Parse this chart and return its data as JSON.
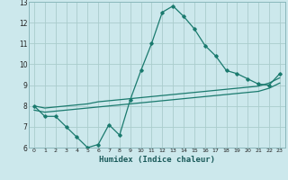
{
  "title": "",
  "xlabel": "Humidex (Indice chaleur)",
  "bg_color": "#cce8ec",
  "grid_color": "#aacccc",
  "line_color": "#1a7a6e",
  "xlim": [
    -0.5,
    23.5
  ],
  "ylim": [
    6,
    13
  ],
  "yticks": [
    6,
    7,
    8,
    9,
    10,
    11,
    12,
    13
  ],
  "xticks": [
    0,
    1,
    2,
    3,
    4,
    5,
    6,
    7,
    8,
    9,
    10,
    11,
    12,
    13,
    14,
    15,
    16,
    17,
    18,
    19,
    20,
    21,
    22,
    23
  ],
  "series": {
    "line1_x": [
      0,
      1,
      2,
      3,
      4,
      5,
      6,
      7,
      8,
      9,
      10,
      11,
      12,
      13,
      14,
      15,
      16,
      17,
      18,
      19,
      20,
      21,
      22,
      23
    ],
    "line1_y": [
      8.0,
      7.5,
      7.5,
      7.0,
      6.5,
      6.0,
      6.15,
      7.1,
      6.6,
      8.3,
      9.7,
      11.0,
      12.5,
      12.8,
      12.3,
      11.7,
      10.9,
      10.4,
      9.7,
      9.55,
      9.3,
      9.05,
      9.0,
      9.55
    ],
    "line2_x": [
      0,
      1,
      2,
      3,
      4,
      5,
      6,
      7,
      8,
      9,
      10,
      11,
      12,
      13,
      14,
      15,
      16,
      17,
      18,
      19,
      20,
      21,
      22,
      23
    ],
    "line2_y": [
      8.0,
      7.9,
      7.95,
      8.0,
      8.05,
      8.1,
      8.2,
      8.25,
      8.3,
      8.35,
      8.4,
      8.45,
      8.5,
      8.55,
      8.6,
      8.65,
      8.7,
      8.75,
      8.8,
      8.85,
      8.9,
      8.95,
      9.1,
      9.35
    ],
    "line3_x": [
      0,
      1,
      2,
      3,
      4,
      5,
      6,
      7,
      8,
      9,
      10,
      11,
      12,
      13,
      14,
      15,
      16,
      17,
      18,
      19,
      20,
      21,
      22,
      23
    ],
    "line3_y": [
      7.8,
      7.7,
      7.75,
      7.8,
      7.85,
      7.9,
      7.95,
      8.0,
      8.05,
      8.1,
      8.15,
      8.2,
      8.25,
      8.3,
      8.35,
      8.4,
      8.45,
      8.5,
      8.55,
      8.6,
      8.65,
      8.7,
      8.85,
      9.1
    ]
  }
}
